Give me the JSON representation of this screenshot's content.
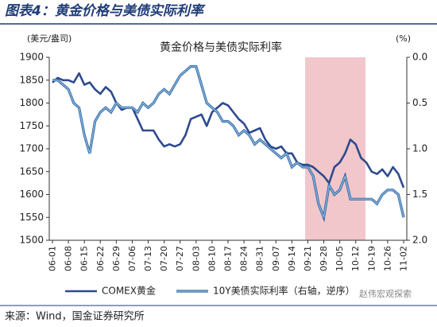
{
  "header": {
    "title": "图表4：黄金价格与美债实际利率"
  },
  "source": "来源：Wind，国金证券研究所",
  "watermark": "赵伟宏观探索",
  "chart_data": {
    "type": "line",
    "title": "黄金价格与美债实际利率",
    "y_label": "(美元/盎司)",
    "y2_label": "(%)",
    "categories": [
      "06-01",
      null,
      null,
      "06-08",
      null,
      null,
      "06-15",
      null,
      null,
      "06-22",
      null,
      null,
      "06-29",
      null,
      null,
      "07-06",
      null,
      null,
      "07-13",
      null,
      null,
      "07-20",
      null,
      null,
      "07-27",
      null,
      null,
      "08-03",
      null,
      null,
      "08-10",
      null,
      null,
      "08-17",
      null,
      null,
      "08-24",
      null,
      null,
      "08-31",
      null,
      null,
      "09-07",
      null,
      null,
      "09-14",
      null,
      null,
      "09-21",
      null,
      null,
      "09-28",
      null,
      null,
      "10-05",
      null,
      null,
      "10-12",
      null,
      null,
      "10-19",
      null,
      null,
      "10-26",
      null,
      null,
      "11-02"
    ],
    "series": [
      {
        "name": "COMEX黄金",
        "color": "#2e4a8e",
        "values": [
          1845,
          1855,
          1850,
          1850,
          1845,
          1865,
          1840,
          1845,
          1830,
          1820,
          1835,
          1825,
          1800,
          1785,
          1790,
          1790,
          1765,
          1740,
          1740,
          1740,
          1720,
          1705,
          1710,
          1705,
          1710,
          1730,
          1765,
          1770,
          1775,
          1750,
          1780,
          1790,
          1800,
          1795,
          1780,
          1765,
          1755,
          1735,
          1740,
          1745,
          1720,
          1705,
          1700,
          1705,
          1690,
          1690,
          1670,
          1665,
          1665,
          1660,
          1650,
          1640,
          1625,
          1660,
          1670,
          1690,
          1720,
          1710,
          1680,
          1670,
          1650,
          1645,
          1655,
          1640,
          1660,
          1645,
          1615
        ]
      },
      {
        "name": "10Y美债实际利率（右轴，逆序）",
        "color": "#7fb2dd",
        "axis": "y2",
        "values": [
          0.25,
          0.25,
          0.3,
          0.35,
          0.5,
          0.55,
          0.85,
          1.05,
          0.7,
          0.6,
          0.55,
          0.6,
          0.5,
          0.55,
          0.55,
          0.55,
          0.6,
          0.5,
          0.55,
          0.5,
          0.4,
          0.35,
          0.4,
          0.3,
          0.2,
          0.15,
          0.1,
          0.1,
          0.3,
          0.5,
          0.55,
          0.6,
          0.7,
          0.7,
          0.75,
          0.85,
          0.8,
          0.85,
          0.95,
          0.9,
          0.95,
          1.0,
          1.05,
          1.1,
          1.05,
          1.2,
          1.15,
          1.2,
          1.2,
          1.3,
          1.6,
          1.75,
          1.4,
          1.5,
          1.45,
          1.3,
          1.55,
          1.55,
          1.55,
          1.55,
          1.55,
          1.6,
          1.5,
          1.45,
          1.45,
          1.5,
          1.75
        ]
      }
    ],
    "ylim": [
      1500,
      1900
    ],
    "yticks": [
      1500,
      1550,
      1600,
      1650,
      1700,
      1750,
      1800,
      1850,
      1900
    ],
    "y2lim": [
      0,
      2
    ],
    "y2_inverted": true,
    "y2ticks": [
      {
        "value": 0,
        "label": "0.0"
      },
      0.5,
      {
        "value": 1,
        "label": "1.0"
      },
      1.5,
      {
        "value": 2,
        "label": "2.0"
      }
    ],
    "grid": false,
    "legend": "bottom"
  }
}
